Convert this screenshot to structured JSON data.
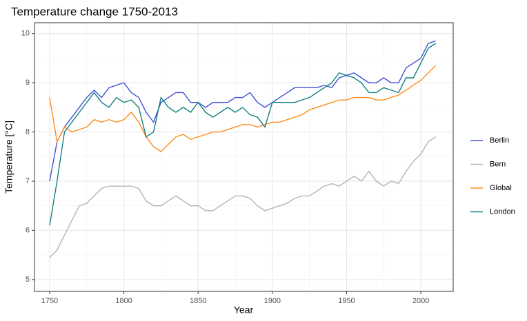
{
  "chart_data": {
    "type": "line",
    "title": "Temperature change 1750-2013",
    "x_label": "Year",
    "y_label": "Temperature [°C]",
    "x": [
      1750,
      1755,
      1760,
      1765,
      1770,
      1775,
      1780,
      1785,
      1790,
      1795,
      1800,
      1805,
      1810,
      1815,
      1820,
      1825,
      1830,
      1835,
      1840,
      1845,
      1850,
      1855,
      1860,
      1865,
      1870,
      1875,
      1880,
      1885,
      1890,
      1895,
      1900,
      1905,
      1910,
      1915,
      1920,
      1925,
      1930,
      1935,
      1940,
      1945,
      1950,
      1955,
      1960,
      1965,
      1970,
      1975,
      1980,
      1985,
      1990,
      1995,
      2000,
      2005,
      2010
    ],
    "series": [
      {
        "name": "Berlin",
        "color": "#3f51d8",
        "values": [
          7.0,
          7.8,
          8.1,
          8.3,
          8.5,
          8.7,
          8.85,
          8.7,
          8.9,
          8.95,
          9.0,
          8.8,
          8.7,
          8.4,
          8.2,
          8.6,
          8.7,
          8.8,
          8.8,
          8.6,
          8.6,
          8.5,
          8.6,
          8.6,
          8.6,
          8.7,
          8.7,
          8.8,
          8.6,
          8.5,
          8.6,
          8.7,
          8.8,
          8.9,
          8.9,
          8.9,
          8.9,
          8.95,
          8.9,
          9.1,
          9.15,
          9.2,
          9.1,
          9.0,
          9.0,
          9.1,
          9.0,
          9.0,
          9.3,
          9.4,
          9.5,
          9.8,
          9.85
        ]
      },
      {
        "name": "Bern",
        "color": "#b3b3b3",
        "values": [
          5.45,
          5.6,
          5.9,
          6.2,
          6.5,
          6.55,
          6.7,
          6.85,
          6.9,
          6.9,
          6.9,
          6.9,
          6.85,
          6.6,
          6.5,
          6.5,
          6.6,
          6.7,
          6.6,
          6.5,
          6.5,
          6.4,
          6.4,
          6.5,
          6.6,
          6.7,
          6.7,
          6.65,
          6.5,
          6.4,
          6.45,
          6.5,
          6.55,
          6.65,
          6.7,
          6.7,
          6.8,
          6.9,
          6.95,
          6.9,
          7.0,
          7.1,
          7.0,
          7.2,
          7.0,
          6.9,
          7.0,
          6.95,
          7.2,
          7.4,
          7.55,
          7.8,
          7.9
        ]
      },
      {
        "name": "Global",
        "color": "#ff8a1c",
        "values": [
          8.7,
          7.8,
          8.1,
          8.0,
          8.05,
          8.1,
          8.25,
          8.2,
          8.25,
          8.2,
          8.25,
          8.4,
          8.2,
          7.9,
          7.7,
          7.6,
          7.75,
          7.9,
          7.95,
          7.85,
          7.9,
          7.95,
          8.0,
          8.0,
          8.05,
          8.1,
          8.15,
          8.15,
          8.1,
          8.15,
          8.2,
          8.2,
          8.25,
          8.3,
          8.35,
          8.45,
          8.5,
          8.55,
          8.6,
          8.65,
          8.65,
          8.7,
          8.7,
          8.7,
          8.65,
          8.65,
          8.7,
          8.75,
          8.85,
          8.95,
          9.05,
          9.2,
          9.35
        ]
      },
      {
        "name": "London",
        "color": "#138080",
        "values": [
          6.1,
          7.0,
          8.0,
          8.2,
          8.4,
          8.6,
          8.8,
          8.6,
          8.5,
          8.7,
          8.6,
          8.65,
          8.5,
          7.9,
          8.0,
          8.7,
          8.5,
          8.4,
          8.5,
          8.4,
          8.6,
          8.4,
          8.3,
          8.4,
          8.5,
          8.4,
          8.5,
          8.35,
          8.3,
          8.1,
          8.6,
          8.6,
          8.6,
          8.6,
          8.65,
          8.7,
          8.8,
          8.9,
          9.0,
          9.2,
          9.15,
          9.1,
          9.0,
          8.8,
          8.8,
          8.9,
          8.85,
          8.8,
          9.1,
          9.1,
          9.4,
          9.7,
          9.8
        ]
      }
    ],
    "xlim": [
      1739.8,
      2021.8
    ],
    "ylim": [
      4.76,
      10.22
    ],
    "xticks": [
      1750,
      1800,
      1850,
      1900,
      1950,
      2000
    ],
    "yticks": [
      5,
      6,
      7,
      8,
      9,
      10
    ],
    "grid": true,
    "legend": "right"
  }
}
